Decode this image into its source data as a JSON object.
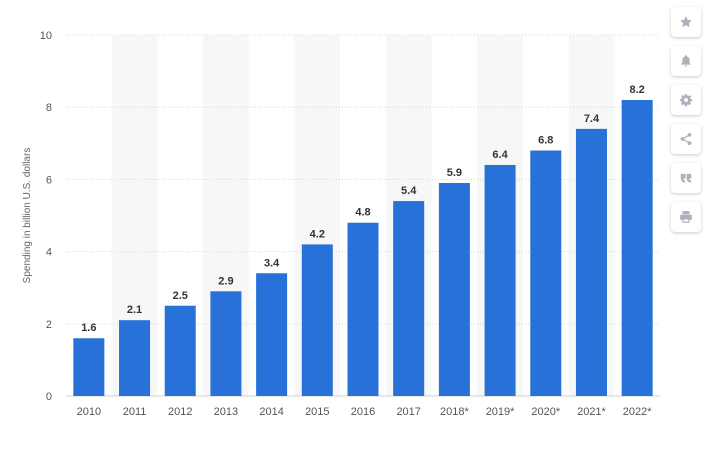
{
  "chart_data": {
    "type": "bar",
    "categories": [
      "2010",
      "2011",
      "2012",
      "2013",
      "2014",
      "2015",
      "2016",
      "2017",
      "2018*",
      "2019*",
      "2020*",
      "2021*",
      "2022*"
    ],
    "values": [
      1.6,
      2.1,
      2.5,
      2.9,
      3.4,
      4.2,
      4.8,
      5.4,
      5.9,
      6.4,
      6.8,
      7.4,
      8.2
    ],
    "value_labels": [
      "1.6",
      "2.1",
      "2.5",
      "2.9",
      "3.4",
      "4.2",
      "4.8",
      "5.4",
      "5.9",
      "6.4",
      "6.8",
      "7.4",
      "8.2"
    ],
    "ylabel": "Spending in billion U.S. dollars",
    "ylim": [
      0,
      10
    ],
    "yticks": [
      0,
      2,
      4,
      6,
      8,
      10
    ],
    "ytick_labels": [
      "0",
      "2",
      "4",
      "6",
      "8",
      "10"
    ],
    "grid": true,
    "bar_color": "#2771d9",
    "band_color": "#f7f7f7"
  },
  "toolbar": {
    "icons": [
      "star-icon",
      "bell-icon",
      "gear-icon",
      "share-icon",
      "quote-icon",
      "print-icon"
    ],
    "icon_color": "#aab2bd"
  }
}
